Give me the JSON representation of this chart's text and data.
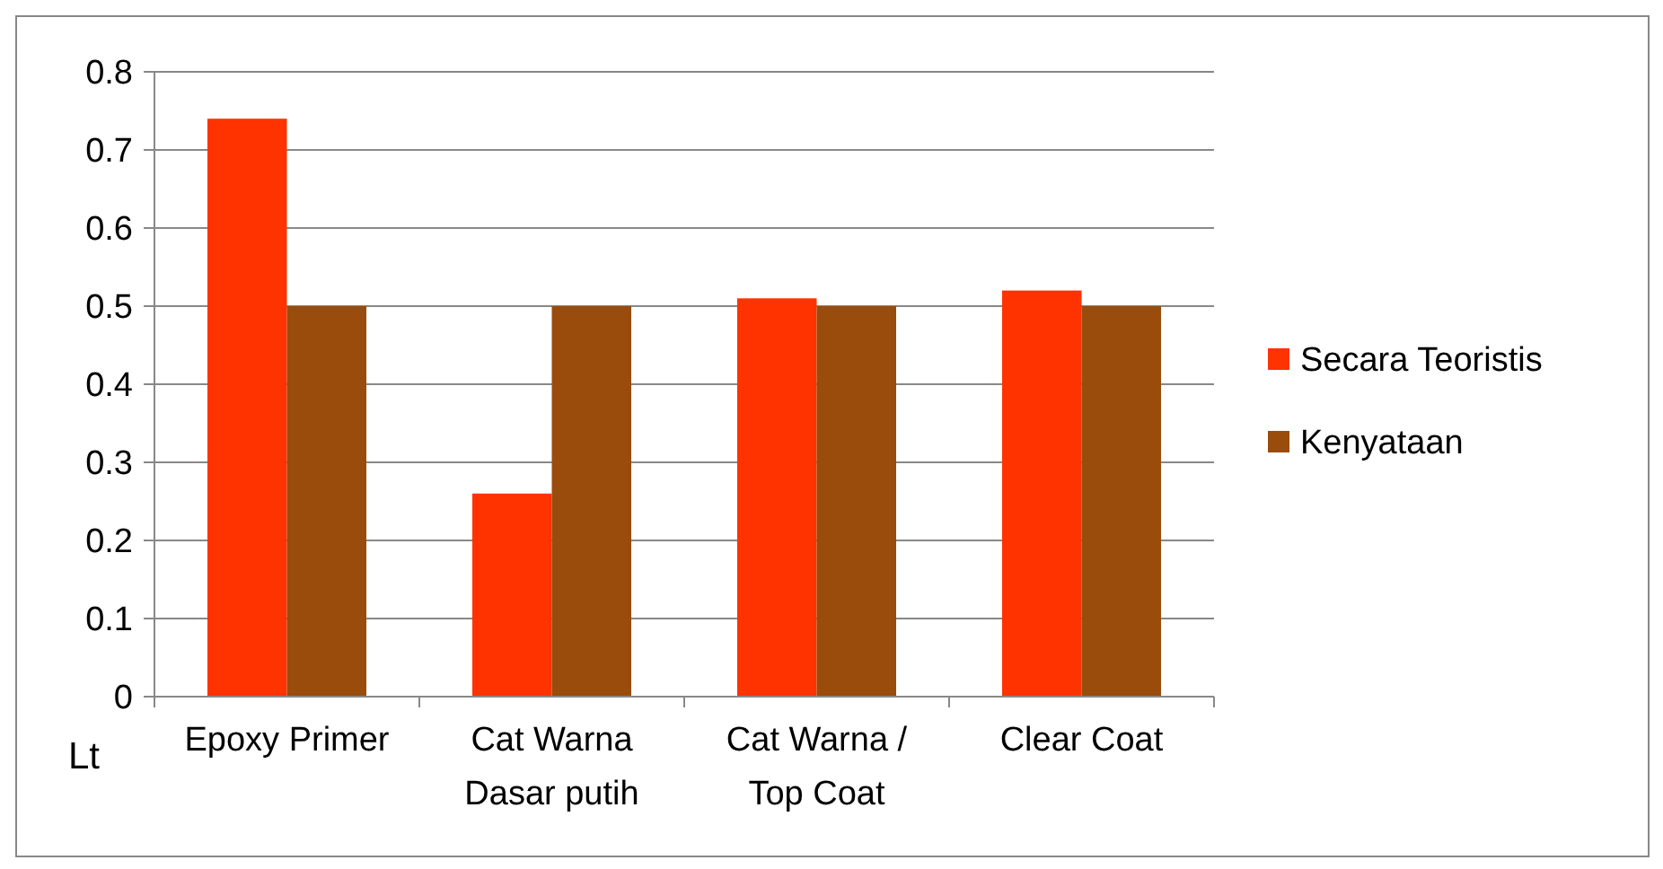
{
  "chart_data": {
    "type": "bar",
    "ylabel": "Lt",
    "categories": [
      "Epoxy Primer",
      "Cat Warna Dasar putih",
      "Cat Warna / Top Coat",
      "Clear Coat"
    ],
    "series": [
      {
        "name": "Secara Teoristis",
        "color": "#ff3300",
        "values": [
          0.74,
          0.26,
          0.51,
          0.52
        ]
      },
      {
        "name": "Kenyataan",
        "color": "#994c0c",
        "values": [
          0.5,
          0.5,
          0.5,
          0.5
        ]
      }
    ],
    "ylim": [
      0,
      0.8
    ],
    "yticks": [
      0,
      0.1,
      0.2,
      0.3,
      0.4,
      0.5,
      0.6,
      0.7,
      0.8
    ],
    "grid": "y",
    "legend": "right"
  }
}
